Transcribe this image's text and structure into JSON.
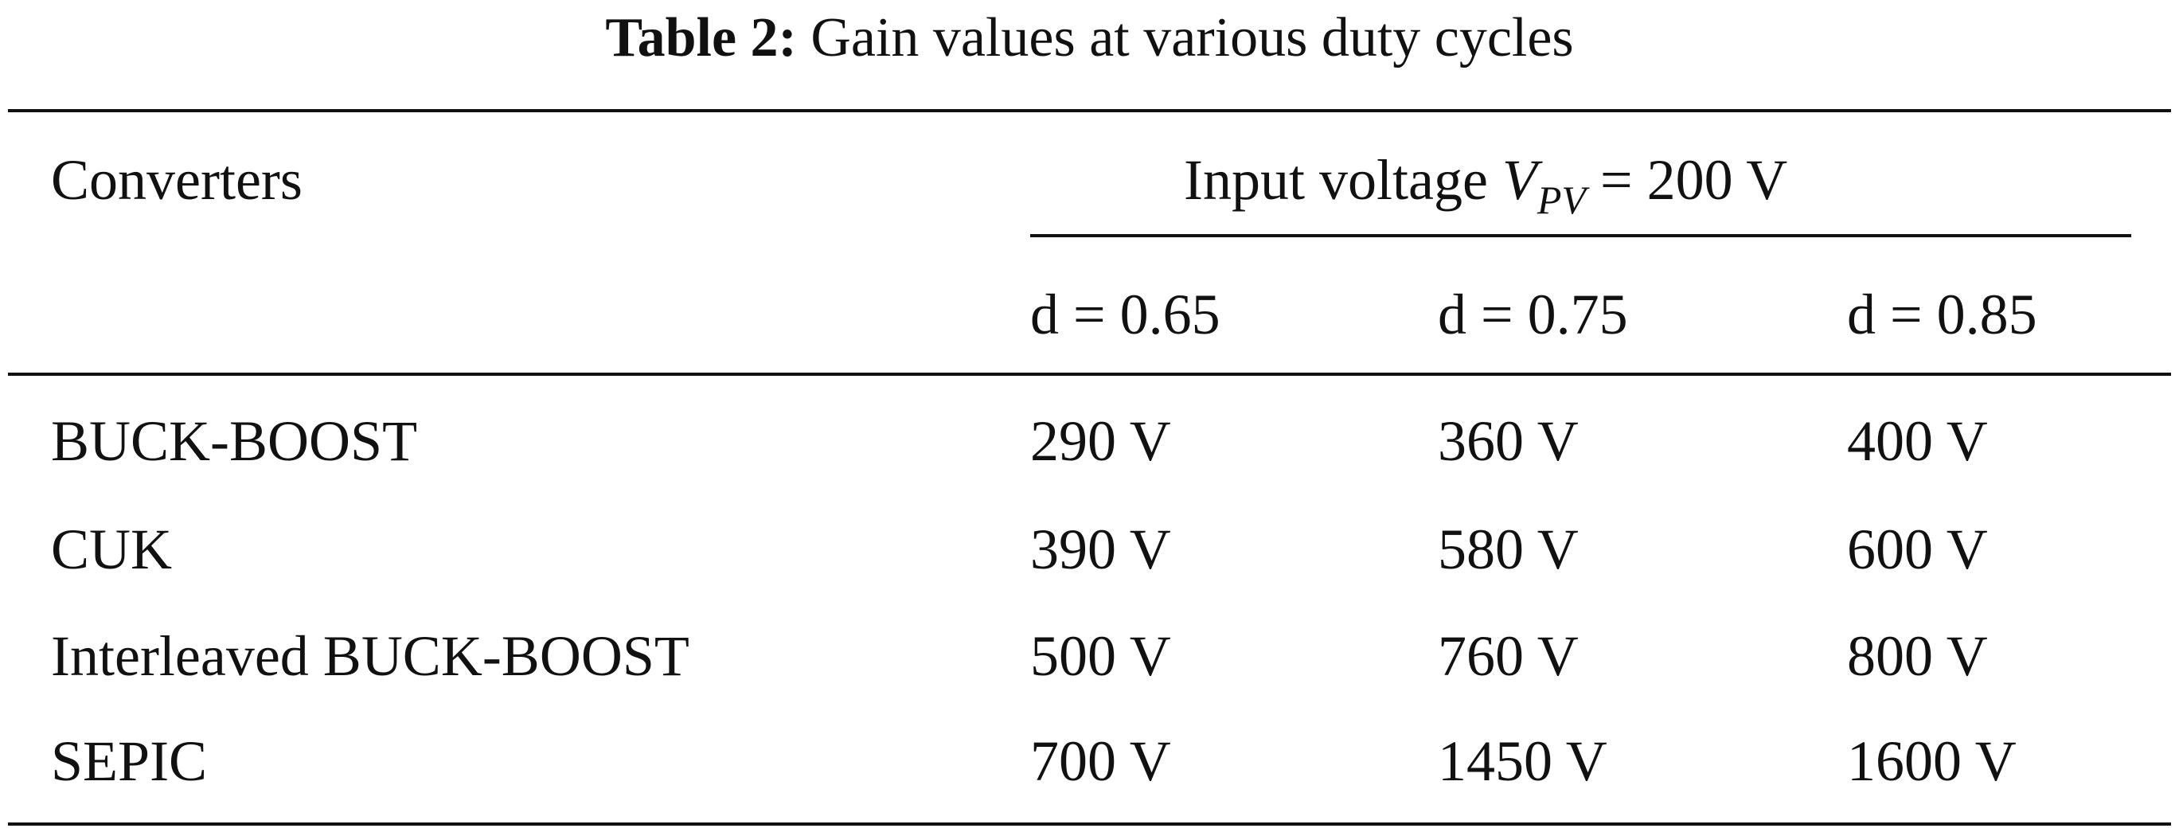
{
  "caption": {
    "label": "Table 2:",
    "text": "Gain values at various duty cycles"
  },
  "header": {
    "first_column": "Converters",
    "group_prefix": "Input voltage ",
    "group_var": "V",
    "group_var_sub": "PV",
    "group_suffix": " = 200 V",
    "duty_cycles": [
      "d = 0.65",
      "d = 0.75",
      "d = 0.85"
    ]
  },
  "rows": [
    {
      "converter": "BUCK-BOOST",
      "values": [
        "290 V",
        "360 V",
        "400 V"
      ]
    },
    {
      "converter": "CUK",
      "values": [
        "390 V",
        "580 V",
        "600 V"
      ]
    },
    {
      "converter": "Interleaved BUCK-BOOST",
      "values": [
        "500 V",
        "760 V",
        "800 V"
      ]
    },
    {
      "converter": "SEPIC",
      "values": [
        "700 V",
        "1450 V",
        "1600 V"
      ]
    }
  ]
}
